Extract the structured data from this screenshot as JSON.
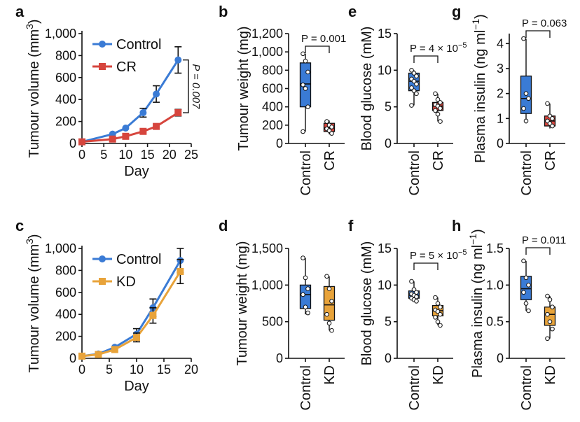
{
  "colors": {
    "control": "#3a7bd5",
    "cr": "#d6453d",
    "kd": "#e8a33a",
    "axis": "#111111"
  },
  "chart_data": [
    {
      "id": "a",
      "panel": "a",
      "type": "line",
      "xlabel": "Day",
      "ylabel": "Tumour volume (mm3)",
      "xlim": [
        0,
        25
      ],
      "ylim": [
        0,
        1000
      ],
      "xticks": [
        0,
        5,
        10,
        15,
        20,
        25
      ],
      "yticks": [
        0,
        200,
        400,
        600,
        800,
        1000
      ],
      "ytick_labels": [
        "0",
        "200",
        "400",
        "600",
        "800",
        "1,000"
      ],
      "pvalue": "P = 0.007",
      "series": [
        {
          "name": "Control",
          "color_key": "control",
          "x": [
            0,
            7,
            10,
            14,
            17,
            22
          ],
          "y": [
            15,
            85,
            140,
            280,
            450,
            760
          ],
          "err": [
            0,
            0,
            0,
            40,
            75,
            120
          ]
        },
        {
          "name": "CR",
          "color_key": "cr",
          "x": [
            0,
            7,
            10,
            14,
            17,
            22
          ],
          "y": [
            15,
            40,
            65,
            110,
            155,
            280
          ],
          "err": [
            0,
            0,
            0,
            0,
            0,
            30
          ]
        }
      ]
    },
    {
      "id": "c",
      "panel": "c",
      "type": "line",
      "xlabel": "Day",
      "ylabel": "Tumour volume (mm3)",
      "xlim": [
        0,
        20
      ],
      "ylim": [
        0,
        1000
      ],
      "xticks": [
        0,
        5,
        10,
        15,
        20
      ],
      "yticks": [
        0,
        200,
        400,
        600,
        800,
        1000
      ],
      "ytick_labels": [
        "0",
        "200",
        "400",
        "600",
        "800",
        "1,000"
      ],
      "series": [
        {
          "name": "Control",
          "color_key": "control",
          "x": [
            0,
            3,
            6,
            10,
            13,
            18
          ],
          "y": [
            20,
            40,
            100,
            220,
            460,
            890
          ],
          "err": [
            0,
            0,
            0,
            50,
            80,
            110
          ]
        },
        {
          "name": "KD",
          "color_key": "kd",
          "x": [
            0,
            3,
            6,
            10,
            13,
            18
          ],
          "y": [
            20,
            35,
            80,
            190,
            390,
            790
          ],
          "err": [
            0,
            0,
            0,
            40,
            70,
            110
          ]
        }
      ]
    },
    {
      "id": "b",
      "panel": "b",
      "type": "box",
      "ylabel": "Tumour weight (mg)",
      "ylim": [
        0,
        1200
      ],
      "yticks": [
        0,
        200,
        400,
        600,
        800,
        1000,
        1200
      ],
      "ytick_labels": [
        "0",
        "200",
        "400",
        "600",
        "800",
        "1,000",
        "1,200"
      ],
      "pvalue": "P = 0.001",
      "groups": [
        {
          "name": "Control",
          "color_key": "control",
          "min": 130,
          "q1": 400,
          "median": 650,
          "q3": 880,
          "max": 980,
          "points": [
            980,
            900,
            780,
            640,
            600,
            400,
            130
          ]
        },
        {
          "name": "CR",
          "color_key": "cr",
          "min": 100,
          "q1": 130,
          "median": 170,
          "q3": 220,
          "max": 250,
          "points": [
            240,
            200,
            180,
            160,
            140,
            110
          ]
        }
      ]
    },
    {
      "id": "d",
      "panel": "d",
      "type": "box",
      "ylabel": "Tumour weight (mg)",
      "ylim": [
        0,
        1500
      ],
      "yticks": [
        0,
        500,
        1000,
        1500
      ],
      "ytick_labels": [
        "0",
        "500",
        "1,000",
        "1,500"
      ],
      "groups": [
        {
          "name": "Control",
          "color_key": "control",
          "min": 600,
          "q1": 680,
          "median": 870,
          "q3": 1000,
          "max": 1370,
          "points": [
            1370,
            1100,
            950,
            870,
            700,
            620
          ]
        },
        {
          "name": "KD",
          "color_key": "kd",
          "min": 380,
          "q1": 520,
          "median": 730,
          "q3": 980,
          "max": 1120,
          "points": [
            1120,
            950,
            780,
            600,
            480,
            380
          ]
        }
      ]
    },
    {
      "id": "e",
      "panel": "e",
      "type": "box",
      "ylabel": "Blood glucose (mM)",
      "ylim": [
        0,
        15
      ],
      "yticks": [
        0,
        5,
        10,
        15
      ],
      "ytick_labels": [
        "0",
        "5",
        "10",
        "15"
      ],
      "pvalue": "P = 4 × 10",
      "pexp": "−5",
      "groups": [
        {
          "name": "Control",
          "color_key": "control",
          "min": 5.2,
          "q1": 7.2,
          "median": 8.5,
          "q3": 9.6,
          "max": 10.0,
          "points": [
            10.0,
            9.6,
            9.2,
            8.8,
            8.5,
            8.1,
            7.6,
            7.2,
            6.8,
            5.2
          ]
        },
        {
          "name": "CR",
          "color_key": "cr",
          "min": 3.0,
          "q1": 4.5,
          "median": 5.1,
          "q3": 5.6,
          "max": 6.8,
          "points": [
            6.8,
            6.0,
            5.6,
            5.3,
            5.1,
            4.8,
            4.5,
            4.0,
            3.0
          ]
        }
      ]
    },
    {
      "id": "f",
      "panel": "f",
      "type": "box",
      "ylabel": "Blood glucose (mM)",
      "ylim": [
        0,
        15
      ],
      "yticks": [
        0,
        5,
        10,
        15
      ],
      "ytick_labels": [
        "0",
        "5",
        "10",
        "15"
      ],
      "pvalue": "P = 5 × 10",
      "pexp": "−5",
      "groups": [
        {
          "name": "Control",
          "color_key": "control",
          "min": 7.8,
          "q1": 8.2,
          "median": 8.6,
          "q3": 9.2,
          "max": 10.5,
          "points": [
            10.5,
            9.4,
            9.0,
            8.8,
            8.6,
            8.4,
            8.2,
            8.0,
            7.8
          ]
        },
        {
          "name": "KD",
          "color_key": "kd",
          "min": 4.5,
          "q1": 5.8,
          "median": 6.5,
          "q3": 7.2,
          "max": 8.3,
          "points": [
            8.3,
            7.5,
            7.0,
            6.6,
            6.4,
            6.0,
            5.6,
            5.0,
            4.5
          ]
        }
      ]
    },
    {
      "id": "g",
      "panel": "g",
      "type": "box",
      "ylabel": "Plasma insulin (ng ml−1)",
      "ylim": [
        0,
        4.4
      ],
      "yticks": [
        0,
        1,
        2,
        3,
        4
      ],
      "ytick_labels": [
        "0",
        "1",
        "2",
        "3",
        "4"
      ],
      "pvalue": "P = 0.063",
      "groups": [
        {
          "name": "Control",
          "color_key": "control",
          "min": 0.8,
          "q1": 1.2,
          "median": 1.8,
          "q3": 2.7,
          "max": 4.2,
          "points": [
            4.2,
            2.0,
            1.8,
            1.4,
            0.9
          ]
        },
        {
          "name": "CR",
          "color_key": "cr",
          "min": 0.6,
          "q1": 0.7,
          "median": 0.9,
          "q3": 1.1,
          "max": 1.6,
          "points": [
            1.6,
            1.1,
            1.0,
            0.9,
            0.8,
            0.7
          ]
        }
      ]
    },
    {
      "id": "h",
      "panel": "h",
      "type": "box",
      "ylabel": "Plasma insulin (ng ml−1)",
      "ylim": [
        0,
        1.5
      ],
      "yticks": [
        0,
        0.5,
        1.0,
        1.5
      ],
      "ytick_labels": [
        "0",
        "0.5",
        "1.0",
        "1.5"
      ],
      "pvalue": "P = 0.011",
      "groups": [
        {
          "name": "Control",
          "color_key": "control",
          "min": 0.65,
          "q1": 0.8,
          "median": 0.95,
          "q3": 1.12,
          "max": 1.33,
          "points": [
            1.33,
            1.1,
            1.0,
            0.9,
            0.75,
            0.65
          ]
        },
        {
          "name": "KD",
          "color_key": "kd",
          "min": 0.27,
          "q1": 0.45,
          "median": 0.6,
          "q3": 0.7,
          "max": 0.85,
          "points": [
            0.85,
            0.8,
            0.7,
            0.6,
            0.5,
            0.4,
            0.27
          ]
        }
      ]
    }
  ]
}
